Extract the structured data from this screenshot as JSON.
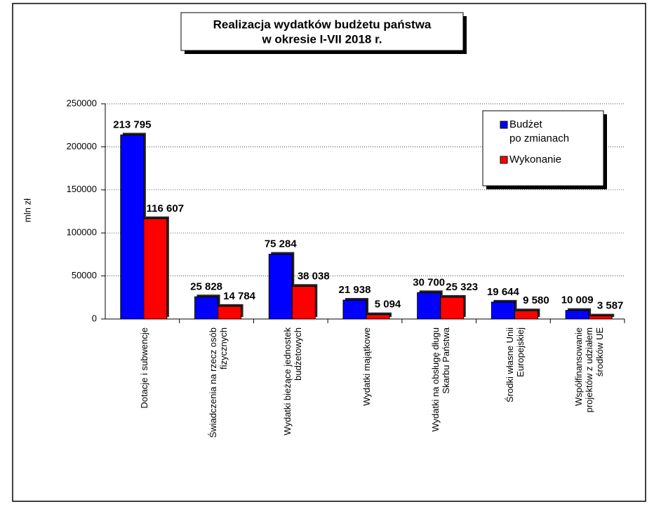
{
  "chart_data": {
    "type": "bar",
    "title": [
      "Realizacja wydatków budżetu państwa",
      "w okresie I-VII 2018 r."
    ],
    "y_label": "mln zł",
    "categories": [
      "Dotacje i subwencje",
      "Świadczenia na rzecz osób fizycznych",
      "Wydatki bieżące jednostek budżetowych",
      "Wydatki majątkowe",
      "Wydatki na obsługę długu Skarbu Państwa",
      "Środki własne Unii Europejskiej",
      "Współfinansowanie projektów z udziałem środków UE"
    ],
    "series": [
      {
        "name": "Budżet po zmianach",
        "color": "#0000ff",
        "values": [
          213795,
          25828,
          75284,
          21938,
          30700,
          19644,
          10009
        ],
        "value_labels": [
          "213 795",
          "25 828",
          "75 284",
          "21 938",
          "30 700",
          "19 644",
          "10 009"
        ]
      },
      {
        "name": "Wykonanie",
        "color": "#ff0000",
        "values": [
          116607,
          14784,
          38038,
          5094,
          25323,
          9580,
          3587
        ],
        "value_labels": [
          "116 607",
          "14 784",
          "38 038",
          "5 094",
          "25 323",
          "9 580",
          "3 587"
        ]
      }
    ],
    "ylim": [
      0,
      250000
    ],
    "yticks": [
      0,
      50000,
      100000,
      150000,
      200000,
      250000
    ],
    "grid": true,
    "legend": "top-right"
  }
}
